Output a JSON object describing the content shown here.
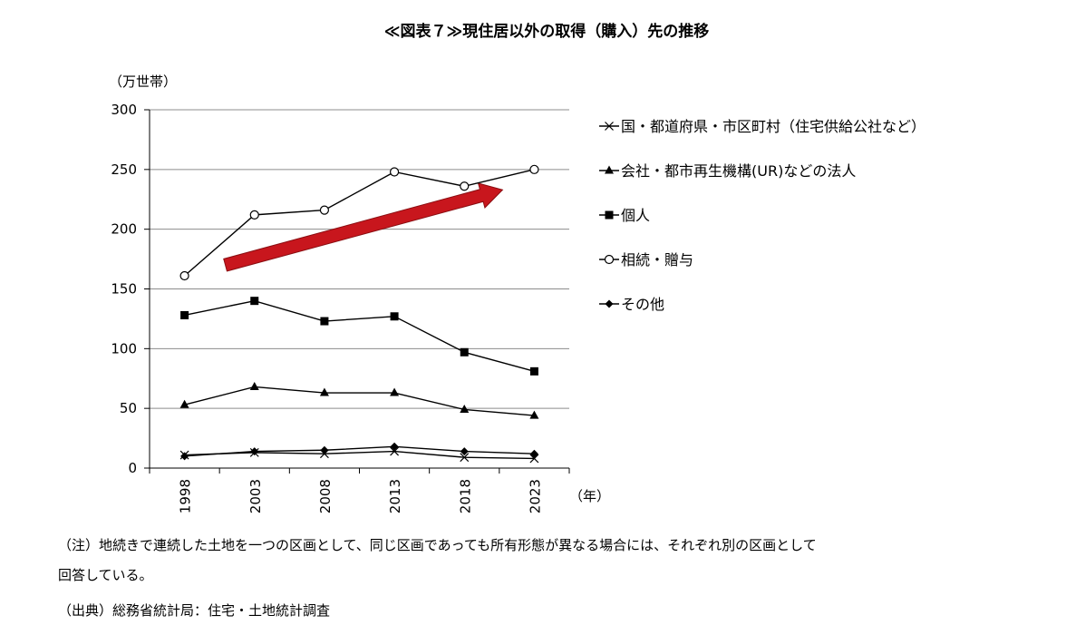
{
  "chart_data": {
    "type": "line",
    "title": "≪図表７≫現住居以外の取得（購入）先の推移",
    "ylabel": "（万世帯）",
    "xlabel": "（年）",
    "ylim": [
      0,
      300
    ],
    "yticks": [
      0,
      50,
      100,
      150,
      200,
      250,
      300
    ],
    "x": [
      "1998",
      "2003",
      "2008",
      "2013",
      "2018",
      "2023"
    ],
    "grid": true,
    "legend_position": "right",
    "series": [
      {
        "name": "国・都道府県・市区町村（住宅供給公社など）",
        "marker": "x",
        "values": [
          11,
          13,
          12,
          14,
          9,
          8
        ]
      },
      {
        "name": "会社・都市再生機構(UR)などの法人",
        "marker": "triangle",
        "values": [
          53,
          68,
          63,
          63,
          49,
          44
        ]
      },
      {
        "name": "個人",
        "marker": "square",
        "values": [
          128,
          140,
          123,
          127,
          97,
          81
        ]
      },
      {
        "name": "相続・贈与",
        "marker": "circle-open",
        "values": [
          161,
          212,
          216,
          248,
          236,
          250
        ]
      },
      {
        "name": "その他",
        "marker": "diamond",
        "values": [
          10,
          14,
          15,
          18,
          14,
          12
        ]
      }
    ],
    "annotations": [
      {
        "type": "trend-arrow",
        "color": "#c8161d",
        "from": [
          "1998",
          170
        ],
        "to": [
          "2023",
          233
        ]
      }
    ]
  },
  "notes": {
    "note_line1": "（注）地続きで連続した土地を一つの区画として、同じ区画であっても所有形態が異なる場合には、それぞれ別の区画として",
    "note_line2": "回答している。",
    "source": "（出典）総務省統計局：住宅・土地統計調査"
  }
}
